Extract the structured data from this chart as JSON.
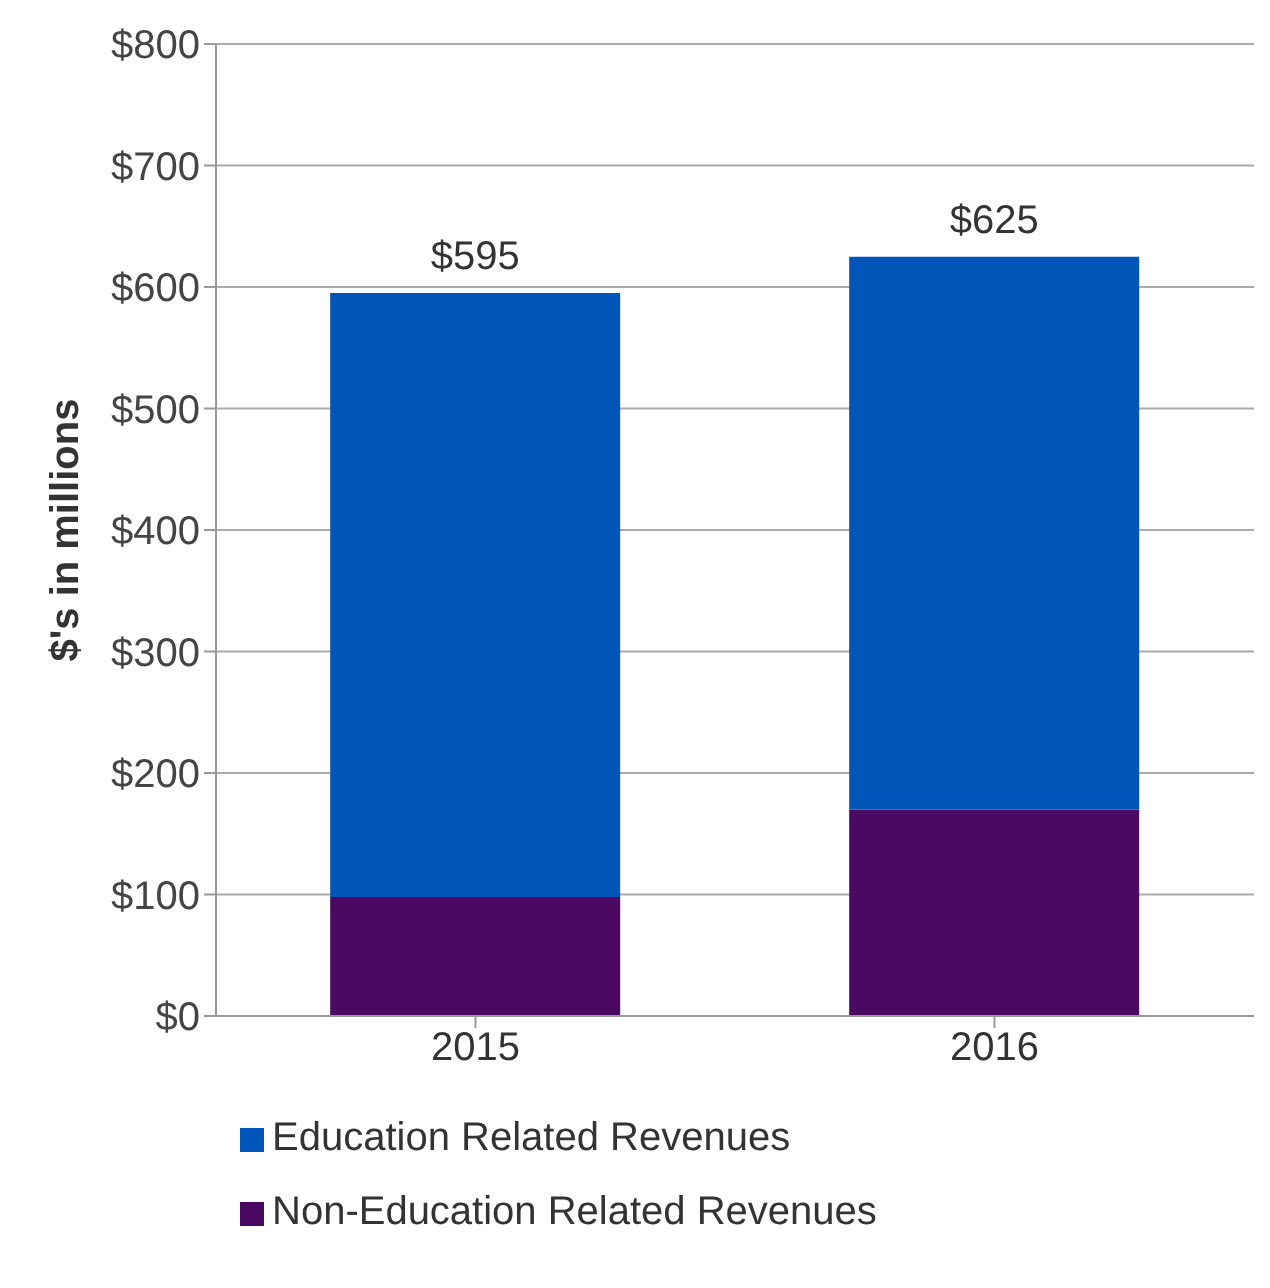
{
  "chart_data": {
    "type": "bar",
    "stacked": true,
    "ylabel": "$'s in millions",
    "categories": [
      "2015",
      "2016"
    ],
    "series": [
      {
        "name": "Non-Education Related Revenues",
        "color": "#4a0a62",
        "values": [
          98,
          170
        ]
      },
      {
        "name": "Education Related Revenues",
        "color": "#0055b8",
        "values": [
          497,
          455
        ]
      }
    ],
    "totals": [
      "$595",
      "$625"
    ],
    "ylim": [
      0,
      800
    ],
    "yticks": [
      {
        "value": 0,
        "label": "$0"
      },
      {
        "value": 100,
        "label": "$100"
      },
      {
        "value": 200,
        "label": "$200"
      },
      {
        "value": 300,
        "label": "$300"
      },
      {
        "value": 400,
        "label": "$400"
      },
      {
        "value": 500,
        "label": "$500"
      },
      {
        "value": 600,
        "label": "$600"
      },
      {
        "value": 700,
        "label": "$700"
      },
      {
        "value": 800,
        "label": "$800"
      }
    ],
    "grid": "y",
    "legend": "bottom"
  }
}
